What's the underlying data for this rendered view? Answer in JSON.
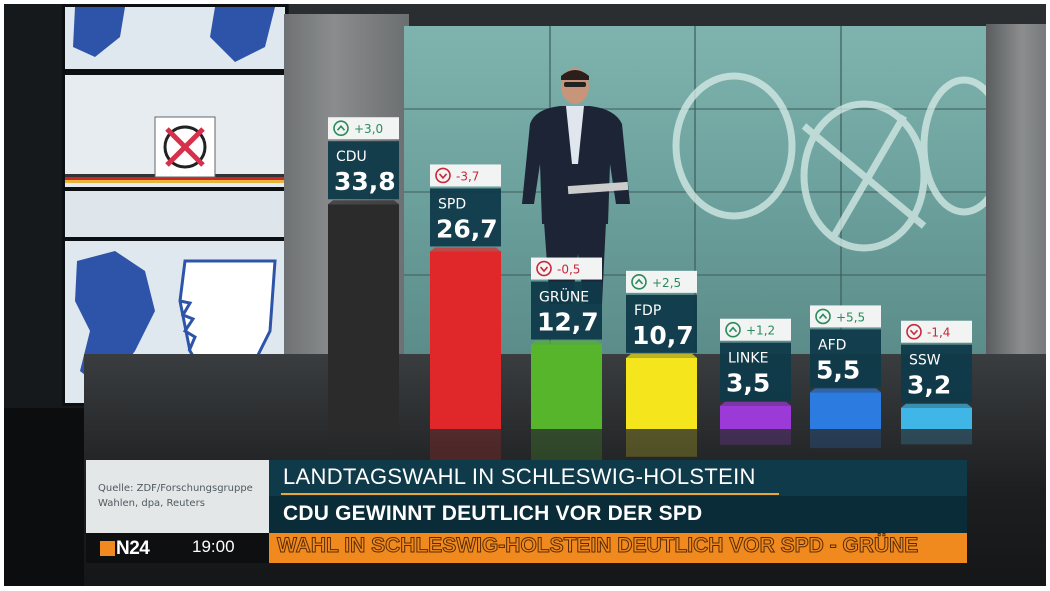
{
  "chart_data": {
    "type": "bar",
    "title": "LANDTAGSWAHL IN SCHLESWIG-HOLSTEIN",
    "categories": [
      "CDU",
      "SPD",
      "GRÜNE",
      "FDP",
      "LINKE",
      "AFD",
      "SSW"
    ],
    "values": [
      33.8,
      26.7,
      12.7,
      10.7,
      3.5,
      5.5,
      3.2
    ],
    "value_labels": [
      "33,8",
      "26,7",
      "12,7",
      "10,7",
      "3,5",
      "5,5",
      "3,2"
    ],
    "changes": [
      3.0,
      -3.7,
      -0.5,
      2.5,
      1.2,
      5.5,
      -1.4
    ],
    "change_labels": [
      "+3,0",
      "-3,7",
      "-0,5",
      "+2,5",
      "+1,2",
      "+5,5",
      "-1,4"
    ],
    "colors": [
      "#2b2b2b",
      "#e0282a",
      "#56b52a",
      "#f4e51c",
      "#9b3ad6",
      "#2b7be0",
      "#3fb6e6"
    ],
    "label_color": "#0f3a4a",
    "up_color": "#2a8a5a",
    "down_color": "#c8283a",
    "ylim": [
      0,
      34
    ]
  },
  "lower_third": {
    "source_line1": "Quelle: ZDF/Forschungsgruppe",
    "source_line2": "Wahlen, dpa, Reuters",
    "headline": "LANDTAGSWAHL IN SCHLESWIG-HOLSTEIN",
    "subline": "CDU GEWINNT DEUTLICH VOR DER SPD",
    "channel": "N24",
    "time": "19:00",
    "ticker": "WAHL IN SCHLESWIG-HOLSTEIN DEUTLICH VOR SPD - GRÜNE"
  }
}
